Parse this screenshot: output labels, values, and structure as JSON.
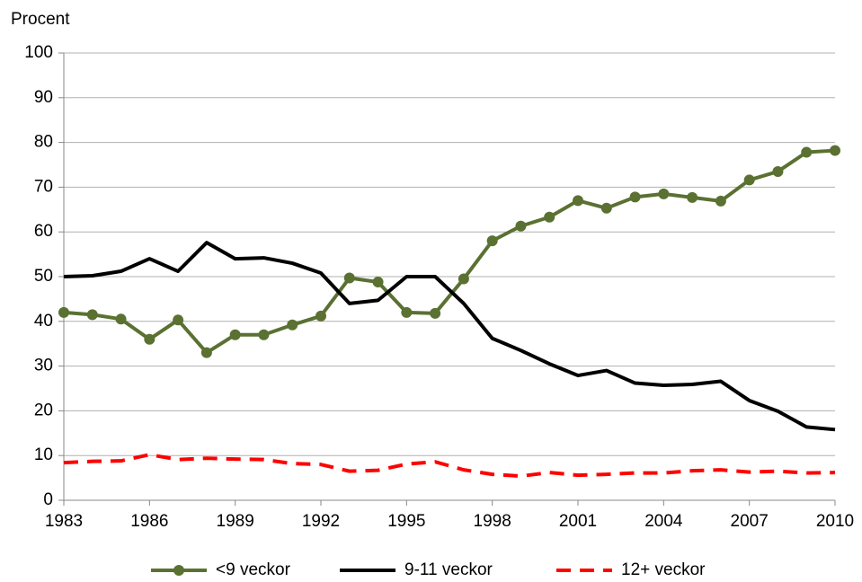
{
  "chart_data": {
    "type": "line",
    "y_label": "Procent",
    "x": [
      1983,
      1984,
      1985,
      1986,
      1987,
      1988,
      1989,
      1990,
      1991,
      1992,
      1993,
      1994,
      1995,
      1996,
      1997,
      1998,
      1999,
      2000,
      2001,
      2002,
      2003,
      2004,
      2005,
      2006,
      2007,
      2008,
      2009,
      2010
    ],
    "series": [
      {
        "name": "<9 veckor",
        "color": "#5a7132",
        "marker": true,
        "dashed": false,
        "values": [
          42,
          41.5,
          40.5,
          36,
          40.3,
          33,
          37,
          37,
          39.2,
          41.2,
          49.7,
          48.8,
          42,
          41.8,
          49.5,
          58,
          61.3,
          63.3,
          67,
          65.3,
          67.8,
          68.5,
          67.7,
          66.9,
          71.6,
          73.5,
          77.8,
          78.2
        ]
      },
      {
        "name": "9-11 veckor",
        "color": "#000000",
        "marker": false,
        "dashed": false,
        "values": [
          50,
          50.2,
          51.2,
          54,
          51.2,
          57.6,
          54,
          54.2,
          53,
          50.8,
          44,
          44.7,
          50,
          50,
          44,
          36.2,
          33.5,
          30.5,
          27.9,
          29,
          26.2,
          25.7,
          25.9,
          26.6,
          22.3,
          19.9,
          16.4,
          15.8
        ]
      },
      {
        "name": "12+ veckor",
        "color": "#ff0000",
        "marker": false,
        "dashed": true,
        "values": [
          8.4,
          8.7,
          8.8,
          10.2,
          9.1,
          9.4,
          9.2,
          9.1,
          8.2,
          8,
          6.5,
          6.7,
          8.1,
          8.6,
          6.8,
          5.8,
          5.4,
          6.2,
          5.6,
          5.8,
          6.1,
          6.1,
          6.6,
          6.8,
          6.3,
          6.5,
          6.1,
          6.2
        ]
      }
    ],
    "xlim": [
      1983,
      2010
    ],
    "xticks": [
      1983,
      1986,
      1989,
      1992,
      1995,
      1998,
      2001,
      2004,
      2007,
      2010
    ],
    "ylim": [
      0,
      100
    ],
    "yticks": [
      0,
      10,
      20,
      30,
      40,
      50,
      60,
      70,
      80,
      90,
      100
    ],
    "grid": true,
    "legend": "bottom"
  }
}
